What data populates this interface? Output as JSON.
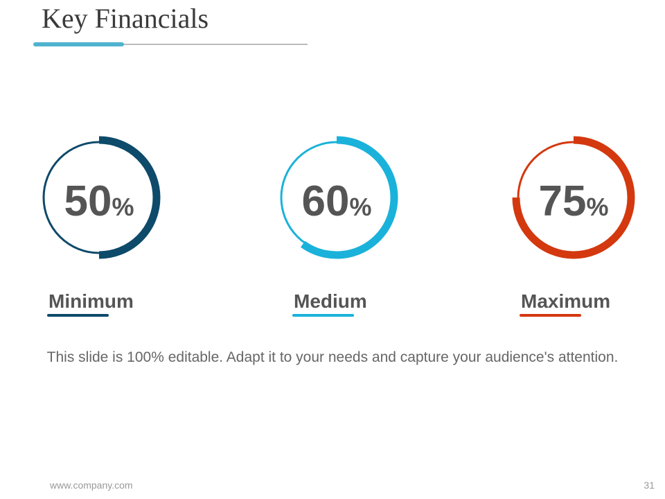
{
  "header": {
    "title": "Key Financials"
  },
  "gauges": [
    {
      "value": 50,
      "unit": "%",
      "label": "Minimum",
      "color": "#0e4a6a"
    },
    {
      "value": 60,
      "unit": "%",
      "label": "Medium",
      "color": "#1ab2da"
    },
    {
      "value": 75,
      "unit": "%",
      "label": "Maximum",
      "color": "#d4380f"
    }
  ],
  "body": "This slide is 100% editable. Adapt it to your needs and capture your audience's attention.",
  "footer": {
    "url": "www.company.com",
    "page": "31"
  }
}
